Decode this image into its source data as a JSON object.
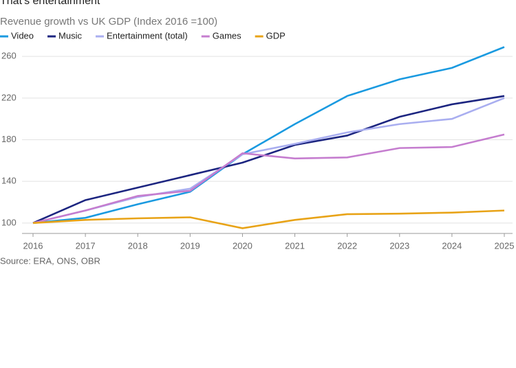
{
  "chart_data": {
    "type": "line",
    "title": "That's entertainment",
    "subtitle": "Revenue growth vs UK GDP (Index 2016 =100)",
    "source": "Source: ERA, ONS, OBR",
    "x": [
      2016,
      2017,
      2018,
      2019,
      2020,
      2021,
      2022,
      2023,
      2024,
      2025
    ],
    "xlim": [
      2016,
      2025
    ],
    "xticks": [
      2016,
      2017,
      2018,
      2019,
      2020,
      2021,
      2022,
      2023,
      2024,
      2025
    ],
    "ylim": [
      90,
      270
    ],
    "yticks": [
      100,
      140,
      180,
      220,
      260
    ],
    "grid": true,
    "legend": "top",
    "series": [
      {
        "name": "Video",
        "color": "#1a9ae0",
        "values": [
          100,
          105,
          118,
          130,
          166,
          195,
          222,
          238,
          249,
          269
        ]
      },
      {
        "name": "Music",
        "color": "#1c2580",
        "values": [
          100,
          122,
          134,
          146,
          158,
          175,
          184,
          202,
          214,
          222
        ]
      },
      {
        "name": "Entertainment (total)",
        "color": "#a9aef0",
        "values": [
          100,
          112,
          125,
          133,
          166,
          176,
          187,
          195,
          200,
          220
        ]
      },
      {
        "name": "Games",
        "color": "#c57dcf",
        "values": [
          100,
          112,
          126,
          131,
          167,
          162,
          163,
          172,
          173,
          185
        ]
      },
      {
        "name": "GDP",
        "color": "#e8a317",
        "values": [
          100,
          103,
          104.5,
          105.5,
          95,
          103,
          108.5,
          109,
          110,
          112
        ]
      }
    ]
  }
}
